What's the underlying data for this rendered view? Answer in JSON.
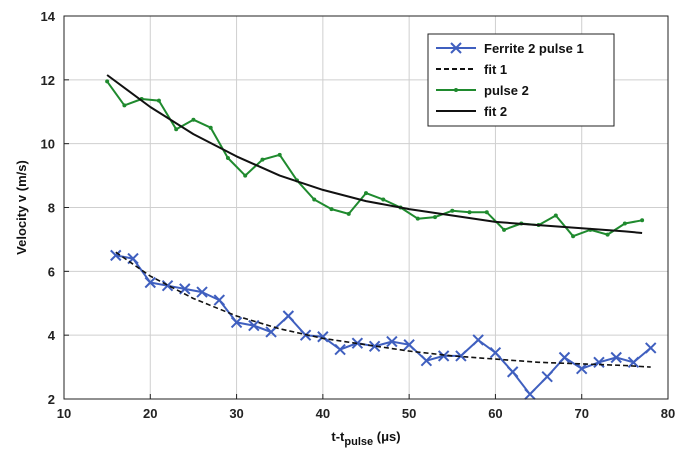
{
  "chart_data": {
    "type": "line",
    "xlabel": {
      "main": "t-t",
      "sub": "pulse",
      "unit": " (μs)"
    },
    "ylabel": "Velocity v (m/s)",
    "xlim": [
      10,
      80
    ],
    "ylim": [
      2,
      14
    ],
    "xticks": [
      10,
      20,
      30,
      40,
      50,
      60,
      70,
      80
    ],
    "yticks": [
      2,
      4,
      6,
      8,
      10,
      12,
      14
    ],
    "grid": true,
    "legend_position": "top-right",
    "series": [
      {
        "name": "Ferrite 2 pulse 1",
        "color": "#3f5fbf",
        "marker": "x",
        "style": "solid",
        "x": [
          16,
          18,
          20,
          22,
          24,
          26,
          28,
          30,
          32,
          34,
          36,
          38,
          40,
          42,
          44,
          46,
          48,
          50,
          52,
          54,
          56,
          58,
          60,
          62,
          64,
          66,
          68,
          70,
          72,
          74,
          76,
          78
        ],
        "y": [
          6.5,
          6.4,
          5.65,
          5.55,
          5.45,
          5.35,
          5.1,
          4.4,
          4.3,
          4.1,
          4.6,
          4.0,
          3.95,
          3.55,
          3.75,
          3.65,
          3.8,
          3.7,
          3.2,
          3.35,
          3.35,
          3.85,
          3.45,
          2.85,
          2.15,
          2.7,
          3.3,
          2.95,
          3.15,
          3.3,
          3.15,
          3.6
        ]
      },
      {
        "name": "fit 1",
        "color": "#111111",
        "marker": "none",
        "style": "dashed",
        "x": [
          16,
          20,
          25,
          30,
          35,
          40,
          45,
          50,
          55,
          60,
          65,
          70,
          75,
          78
        ],
        "y": [
          6.6,
          5.85,
          5.15,
          4.6,
          4.2,
          3.9,
          3.7,
          3.5,
          3.35,
          3.25,
          3.15,
          3.1,
          3.05,
          3.0
        ]
      },
      {
        "name": "pulse 2",
        "color": "#1f8a2e",
        "marker": "dot",
        "style": "solid",
        "x": [
          15,
          17,
          19,
          21,
          23,
          25,
          27,
          29,
          31,
          33,
          35,
          37,
          39,
          41,
          43,
          45,
          47,
          49,
          51,
          53,
          55,
          57,
          59,
          61,
          63,
          65,
          67,
          69,
          71,
          73,
          75,
          77
        ],
        "y": [
          11.95,
          11.2,
          11.4,
          11.35,
          10.45,
          10.75,
          10.5,
          9.55,
          9.0,
          9.5,
          9.65,
          8.85,
          8.25,
          7.95,
          7.8,
          8.45,
          8.25,
          8.0,
          7.65,
          7.7,
          7.9,
          7.85,
          7.85,
          7.3,
          7.5,
          7.45,
          7.75,
          7.1,
          7.3,
          7.15,
          7.5,
          7.6
        ]
      },
      {
        "name": "fit 2",
        "color": "#111111",
        "marker": "none",
        "style": "solid",
        "x": [
          15,
          20,
          25,
          30,
          35,
          40,
          45,
          50,
          55,
          60,
          65,
          70,
          75,
          77
        ],
        "y": [
          12.15,
          11.15,
          10.3,
          9.6,
          9.0,
          8.55,
          8.2,
          7.95,
          7.75,
          7.55,
          7.45,
          7.35,
          7.25,
          7.2
        ]
      }
    ]
  }
}
